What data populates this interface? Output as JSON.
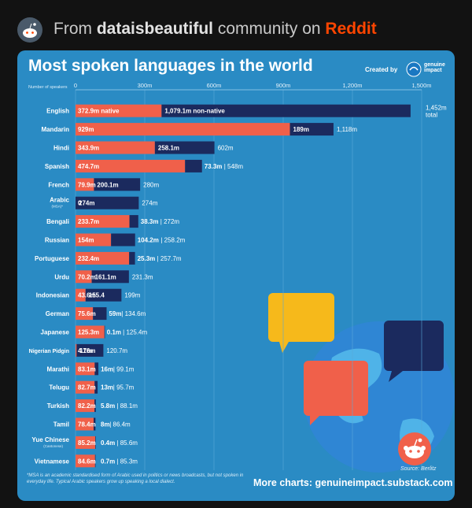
{
  "header": {
    "prefix": "From ",
    "community": "dataisbeautiful",
    "middle": " community on ",
    "site": "Reddit"
  },
  "chart_data": {
    "type": "bar",
    "title": "Most spoken languages in the world",
    "created_by": "Created by",
    "brand": "genuine impact",
    "axis_label": "Number of speakers",
    "ticks": [
      "0",
      "300m",
      "600m",
      "900m",
      "1,200m",
      "1,500m"
    ],
    "tick_values": [
      0,
      300,
      600,
      900,
      1200,
      1500
    ],
    "xlim": [
      0,
      1500
    ],
    "series": [
      {
        "name": "native",
        "color": "#f0604a"
      },
      {
        "name": "non-native",
        "color": "#1b2a5e"
      }
    ],
    "rows": [
      {
        "language": "English",
        "native": 372.9,
        "non_native": 1079.1,
        "native_label": "372.9m native",
        "non_native_label": "1,079.1m non-native",
        "total_label": "1,452m",
        "total_sub": "total"
      },
      {
        "language": "Mandarin",
        "native": 929,
        "non_native": 189,
        "native_label": "929m",
        "non_native_label": "189m",
        "total_label": "1,118m"
      },
      {
        "language": "Hindi",
        "native": 343.9,
        "non_native": 258.1,
        "native_label": "343.9m",
        "non_native_label": "258.1m",
        "total_label": "602m"
      },
      {
        "language": "Spanish",
        "native": 474.7,
        "non_native": 73.3,
        "native_label": "474.7m",
        "non_native_label": "73.3m",
        "total_label": "548m"
      },
      {
        "language": "French",
        "native": 79.9,
        "non_native": 200.1,
        "native_label": "79.9m",
        "non_native_label": "200.1m",
        "total_label": "280m"
      },
      {
        "language": "Arabic",
        "sub": "(MSA)*",
        "native": 0,
        "non_native": 274,
        "native_label": "0",
        "non_native_label": "274m",
        "total_label": "274m"
      },
      {
        "language": "Bengali",
        "native": 233.7,
        "non_native": 38.3,
        "native_label": "233.7m",
        "non_native_label": "38.3m",
        "total_label": "272m"
      },
      {
        "language": "Russian",
        "native": 154,
        "non_native": 104.2,
        "native_label": "154m",
        "non_native_label": "104.2m",
        "total_label": "258.2m"
      },
      {
        "language": "Portuguese",
        "native": 232.4,
        "non_native": 25.3,
        "native_label": "232.4m",
        "non_native_label": "25.3m",
        "total_label": "257.7m"
      },
      {
        "language": "Urdu",
        "native": 70.2,
        "non_native": 161.1,
        "native_label": "70.2m",
        "non_native_label": "161.1m",
        "total_label": "231.3m"
      },
      {
        "language": "Indonesian",
        "native": 43.6,
        "non_native": 155.4,
        "native_label": "43.6m",
        "non_native_label": "155.4",
        "total_label": "199m"
      },
      {
        "language": "German",
        "native": 75.6,
        "non_native": 59,
        "native_label": "75.6m",
        "non_native_label": "59m",
        "total_label": "134.6m"
      },
      {
        "language": "Japanese",
        "native": 125.3,
        "non_native": 0.1,
        "native_label": "125.3m",
        "non_native_label": "0.1m",
        "total_label": "125.4m"
      },
      {
        "language": "Nigerian Pidgin",
        "native": 4.7,
        "non_native": 116,
        "native_label": "4.7m",
        "non_native_label": "116m",
        "total_label": "120.7m"
      },
      {
        "language": "Marathi",
        "native": 83.1,
        "non_native": 16,
        "native_label": "83.1m",
        "non_native_label": "16m",
        "total_label": "99.1m"
      },
      {
        "language": "Telugu",
        "native": 82.7,
        "non_native": 13,
        "native_label": "82.7m",
        "non_native_label": "13m",
        "total_label": "95.7m"
      },
      {
        "language": "Turkish",
        "native": 82.2,
        "non_native": 5.8,
        "native_label": "82.2m",
        "non_native_label": "5.8m",
        "total_label": "88.1m"
      },
      {
        "language": "Tamil",
        "native": 78.4,
        "non_native": 8,
        "native_label": "78.4m",
        "non_native_label": "8m",
        "total_label": "86.4m"
      },
      {
        "language": "Yue Chinese",
        "sub": "(Cantonese)",
        "native": 85.2,
        "non_native": 0.4,
        "native_label": "85.2m",
        "non_native_label": "0.4m",
        "total_label": "85.6m"
      },
      {
        "language": "Vietnamese",
        "native": 84.6,
        "non_native": 0.7,
        "native_label": "84.6m",
        "non_native_label": "0.7m",
        "total_label": "85.3m"
      }
    ],
    "footnote": "*MSA is an academic standardised form of Arabic used in politics or news broadcasts, but not spoken in everyday life. Typical Arabic speakers grow up speaking a local dialect.",
    "more_charts": "More charts: genuineimpact.substack.com",
    "source": "Source: Berlitz"
  }
}
